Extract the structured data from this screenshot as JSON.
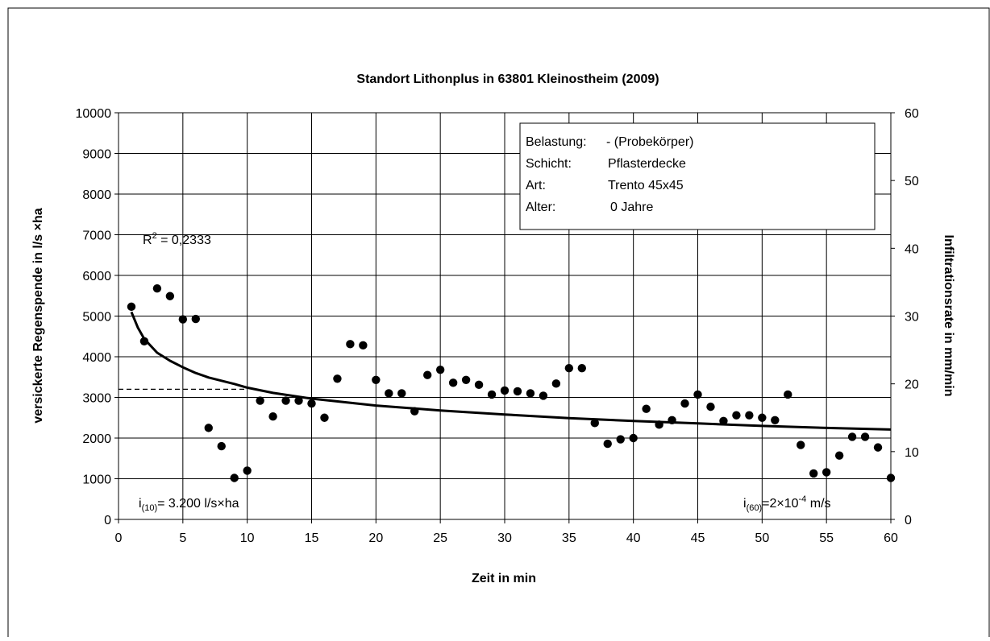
{
  "chart_data": {
    "type": "scatter",
    "title": "Standort Lithonplus in 63801 Kleinostheim (2009)",
    "xlabel": "Zeit in min",
    "ylabel": "versickerte Regenspende in l/s ×ha",
    "y2label": "Infiltrationsrate in mm/min",
    "xlim": [
      0,
      60
    ],
    "ylim": [
      0,
      10000
    ],
    "y2lim": [
      0,
      60
    ],
    "x_ticks": [
      "0",
      "5",
      "10",
      "15",
      "20",
      "25",
      "30",
      "35",
      "40",
      "45",
      "50",
      "55",
      "60"
    ],
    "y_ticks": [
      "0",
      "1000",
      "2000",
      "3000",
      "4000",
      "5000",
      "6000",
      "7000",
      "8000",
      "9000",
      "10000"
    ],
    "y2_ticks": [
      "0",
      "10",
      "20",
      "30",
      "40",
      "50",
      "60"
    ],
    "grid": true,
    "series": [
      {
        "type": "scatter",
        "x": [
          1,
          2,
          3,
          4,
          5,
          6,
          7,
          8,
          9,
          10,
          11,
          12,
          13,
          14,
          15,
          16,
          17,
          18,
          19,
          20,
          21,
          22,
          23,
          24,
          25,
          26,
          27,
          28,
          29,
          30,
          31,
          32,
          33,
          34,
          35,
          36,
          37,
          38,
          39,
          40,
          41,
          42,
          43,
          44,
          45,
          46,
          47,
          48,
          49,
          50,
          51,
          52,
          53,
          54,
          55,
          56,
          57,
          58,
          59,
          60
        ],
        "values": [
          5230,
          4380,
          5680,
          5490,
          4920,
          4930,
          2250,
          1800,
          1020,
          1200,
          2920,
          2530,
          2920,
          2920,
          2850,
          2500,
          3460,
          4310,
          4280,
          3430,
          3100,
          3100,
          2660,
          3550,
          3680,
          3360,
          3430,
          3310,
          3070,
          3170,
          3150,
          3100,
          3040,
          3340,
          3720,
          3720,
          2370,
          1860,
          1970,
          2000,
          2720,
          2330,
          2440,
          2850,
          3070,
          2770,
          2420,
          2560,
          2560,
          2500,
          2440,
          3070,
          1830,
          1130,
          1160,
          1570,
          2030,
          2030,
          1770,
          1020
        ]
      },
      {
        "type": "line",
        "x": [
          1,
          1.5,
          2,
          3,
          4,
          5,
          6,
          7,
          8,
          9,
          10,
          12,
          15,
          20,
          25,
          30,
          35,
          40,
          45,
          50,
          55,
          60
        ],
        "values": [
          5100,
          4720,
          4440,
          4100,
          3900,
          3740,
          3600,
          3490,
          3410,
          3330,
          3240,
          3110,
          2970,
          2800,
          2680,
          2580,
          2490,
          2420,
          2360,
          2300,
          2250,
          2210
        ]
      }
    ],
    "reference_line": {
      "y": 3200,
      "x_end": 10
    },
    "annotations": {
      "r2": "R² = 0,2333",
      "i10_prefix": "i",
      "i10_sub": "(10)",
      "i10_rest": "= 3.200 l/s×ha",
      "i60_prefix": "i",
      "i60_sub": "(60)",
      "i60_mid": "=2×10",
      "i60_sup": "-4",
      "i60_unit": " m/s"
    },
    "info_box": {
      "rows": [
        {
          "label": "Belastung:",
          "value": "- (Probekörper)"
        },
        {
          "label": "Schicht:",
          "value": "Pflasterdecke"
        },
        {
          "label": "Art:",
          "value": "Trento 45x45"
        },
        {
          "label": "Alter:",
          "value": "0 Jahre"
        }
      ]
    }
  }
}
